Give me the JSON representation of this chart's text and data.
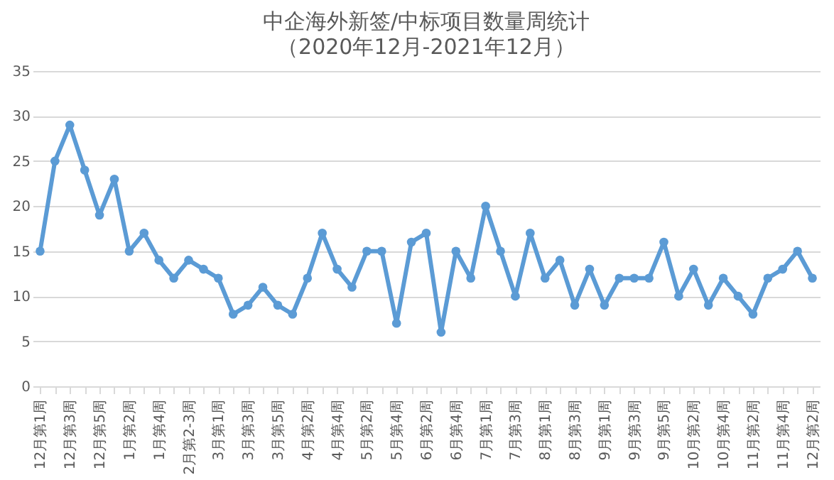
{
  "chart_data": {
    "type": "line",
    "title": "中企海外新签/中标项目数量周统计",
    "subtitle": "（2020年12月-2021年12月）",
    "categories": [
      "12月第1周",
      null,
      "12月第3周",
      null,
      "12月第5周",
      null,
      "1月第2周",
      null,
      "1月第4周",
      null,
      "2月第2-3周",
      null,
      "3月第1周",
      null,
      "3月第3周",
      null,
      "3月第5周",
      null,
      "4月第2周",
      null,
      "4月第4周",
      null,
      "5月第2周",
      null,
      "5月第4周",
      null,
      "6月第2周",
      null,
      "6月第4周",
      null,
      "7月第1周",
      null,
      "7月第3周",
      null,
      "8月第1周",
      null,
      "8月第3周",
      null,
      "9月第1周",
      null,
      "9月第3周",
      null,
      "9月第5周",
      null,
      "10月第2周",
      null,
      "10月第4周",
      null,
      "11月第2周",
      null,
      "11月第4周",
      null,
      "12月第2周"
    ],
    "series": [
      {
        "color": "#5b9bd5",
        "values": [
          15,
          25,
          29,
          24,
          19,
          23,
          15,
          17,
          14,
          12,
          14,
          13,
          12,
          8,
          9,
          11,
          9,
          8,
          12,
          17,
          13,
          11,
          15,
          15,
          7,
          16,
          17,
          6,
          15,
          12,
          20,
          15,
          10,
          17,
          12,
          14,
          9,
          13,
          9,
          12,
          12,
          12,
          16,
          10,
          13,
          9,
          12,
          10,
          8,
          12,
          13,
          15,
          12
        ]
      }
    ],
    "ylim": [
      0,
      35
    ],
    "yticks": [
      0,
      5,
      10,
      15,
      20,
      25,
      30,
      35
    ],
    "grid": "y",
    "marker": "circle",
    "line_style": "solid"
  }
}
